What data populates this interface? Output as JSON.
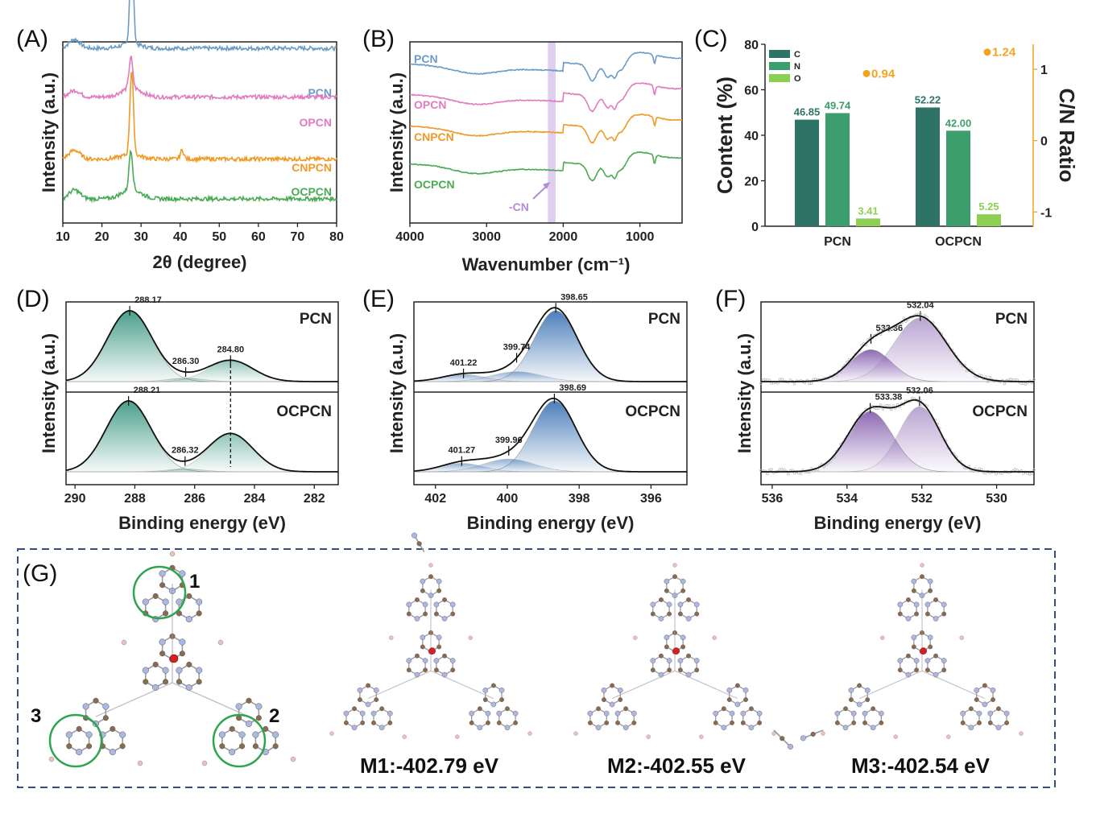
{
  "panels": {
    "A": {
      "label": "(A)",
      "xlabel": "2θ (degree)",
      "ylabel": "Intensity (a.u.)"
    },
    "B": {
      "label": "(B)",
      "xlabel": "Wavenumber (cm⁻¹)",
      "ylabel": "Intensity (a.u.)",
      "annotation": "-CN"
    },
    "C": {
      "label": "(C)",
      "ylabel_left": "Content (%)",
      "ylabel_right": "C/N Ratio"
    },
    "D": {
      "label": "(D)",
      "xlabel": "Binding energy (eV)",
      "ylabel": "Intensity (a.u.)"
    },
    "E": {
      "label": "(E)",
      "xlabel": "Binding energy (eV)",
      "ylabel": "Intensity (a.u.)"
    },
    "F": {
      "label": "(F)",
      "xlabel": "Binding energy (eV)",
      "ylabel": "Intensity (a.u.)"
    },
    "G": {
      "label": "(G)",
      "site_labels": [
        "1",
        "2",
        "3"
      ],
      "models": [
        {
          "label": "M1:-402.79 eV"
        },
        {
          "label": "M2:-402.55 eV"
        },
        {
          "label": "M3:-402.54 eV"
        }
      ]
    }
  },
  "colors": {
    "PCN": "#6a9cc8",
    "OPCN": "#e27bbf",
    "CNPCN": "#f09a26",
    "OCPCN": "#4aaa55",
    "C": "#2e7466",
    "N": "#3c9e6c",
    "O": "#8ccf52",
    "ratio": "#f2a41f",
    "C1s": "#2d8f78",
    "N1s": "#2f6ab0",
    "O1s": "#7b52a8",
    "band": "#d9c5ec"
  },
  "chart_data": [
    {
      "panel": "A",
      "type": "line",
      "xlabel": "2θ (degree)",
      "ylabel": "Intensity (a.u.)",
      "xlim": [
        10,
        80
      ],
      "xticks": [
        10,
        20,
        30,
        40,
        50,
        60,
        70,
        80
      ],
      "series": [
        {
          "name": "PCN",
          "baseline": 3.6,
          "peaks": [
            [
              27.6,
              2.2
            ],
            [
              13.0,
              0.2
            ]
          ]
        },
        {
          "name": "OPCN",
          "baseline": 2.5,
          "peaks": [
            [
              27.4,
              0.7
            ],
            [
              13.0,
              0.15
            ]
          ]
        },
        {
          "name": "CNPCN",
          "baseline": 1.1,
          "peaks": [
            [
              27.6,
              1.9
            ],
            [
              13.0,
              0.2
            ],
            [
              40.5,
              0.2
            ]
          ]
        },
        {
          "name": "OCPCN",
          "baseline": 0.2,
          "peaks": [
            [
              27.4,
              0.9
            ],
            [
              13.0,
              0.2
            ]
          ]
        }
      ]
    },
    {
      "panel": "B",
      "type": "line",
      "xlabel": "Wavenumber (cm⁻¹)",
      "ylabel": "Intensity (a.u.)",
      "xlim": [
        4000,
        450
      ],
      "xticks": [
        4000,
        3000,
        2000,
        1000
      ],
      "highlight_band": [
        2200,
        2100
      ],
      "series": [
        {
          "name": "PCN",
          "offset": 3
        },
        {
          "name": "OPCN",
          "offset": 2
        },
        {
          "name": "CNPCN",
          "offset": 1
        },
        {
          "name": "OCPCN",
          "offset": 0
        }
      ]
    },
    {
      "panel": "C",
      "type": "bar",
      "categories": [
        "PCN",
        "OCPCN"
      ],
      "series": [
        {
          "name": "C",
          "values": [
            46.85,
            52.22
          ]
        },
        {
          "name": "N",
          "values": [
            49.74,
            42.0
          ]
        },
        {
          "name": "O",
          "values": [
            3.41,
            5.25
          ]
        }
      ],
      "value_labels": [
        [
          "46.85",
          "49.74",
          "3.41"
        ],
        [
          "52.22",
          "42.00",
          "5.25"
        ]
      ],
      "ratio": {
        "values": [
          0.94,
          1.24
        ],
        "labels": [
          "0.94",
          "1.24"
        ]
      },
      "ylabel": "Content (%)",
      "ylim": [
        0,
        80
      ],
      "yticks": [
        0,
        20,
        40,
        60,
        80
      ],
      "y2label": "C/N Ratio",
      "y2lim": [
        -1.2,
        1.35
      ],
      "y2ticks": [
        -1,
        0,
        1
      ],
      "legend": "top-left"
    },
    {
      "panel": "D",
      "type": "line",
      "xlabel": "Binding energy (eV)",
      "ylabel": "Intensity (a.u.)",
      "xlim": [
        290.3,
        281.2
      ],
      "xticks": [
        290,
        288,
        286,
        284,
        282
      ],
      "spectra": [
        {
          "name": "PCN",
          "peaks": [
            [
              288.17,
              1.0,
              0.75
            ],
            [
              286.3,
              0.05,
              0.6
            ],
            [
              284.8,
              0.3,
              0.75
            ]
          ],
          "labels": [
            "288.17",
            "286.30",
            "284.80"
          ]
        },
        {
          "name": "OCPCN",
          "peaks": [
            [
              288.21,
              1.0,
              0.75
            ],
            [
              286.32,
              0.04,
              0.6
            ],
            [
              284.8,
              0.54,
              0.75
            ]
          ],
          "labels": [
            "288.21",
            "286.32"
          ]
        }
      ]
    },
    {
      "panel": "E",
      "type": "line",
      "xlabel": "Binding energy (eV)",
      "ylabel": "Intensity (a.u.)",
      "xlim": [
        402.6,
        395.0
      ],
      "xticks": [
        402,
        400,
        398,
        396
      ],
      "spectra": [
        {
          "name": "PCN",
          "peaks": [
            [
              398.65,
              1.0,
              0.6
            ],
            [
              399.74,
              0.14,
              0.7
            ],
            [
              401.22,
              0.1,
              0.6
            ]
          ],
          "labels": [
            "398.65",
            "399.74",
            "401.22"
          ]
        },
        {
          "name": "OCPCN",
          "peaks": [
            [
              398.69,
              1.0,
              0.6
            ],
            [
              399.96,
              0.18,
              0.7
            ],
            [
              401.27,
              0.12,
              0.6
            ]
          ],
          "labels": [
            "398.69",
            "399.96",
            "401.27"
          ]
        }
      ]
    },
    {
      "panel": "F",
      "type": "line",
      "xlabel": "Binding energy (eV)",
      "ylabel": "Intensity (a.u.)",
      "xlim": [
        536.3,
        529.0
      ],
      "xticks": [
        536,
        534,
        532,
        530
      ],
      "spectra": [
        {
          "name": "PCN",
          "peaks": [
            [
              533.36,
              0.45,
              0.55
            ],
            [
              532.04,
              0.9,
              0.7
            ]
          ],
          "labels": [
            "533.36",
            "532.04"
          ]
        },
        {
          "name": "OCPCN",
          "peaks": [
            [
              533.38,
              0.85,
              0.6
            ],
            [
              532.06,
              0.92,
              0.55
            ]
          ],
          "labels": [
            "533.38",
            "532.06"
          ]
        }
      ]
    }
  ]
}
